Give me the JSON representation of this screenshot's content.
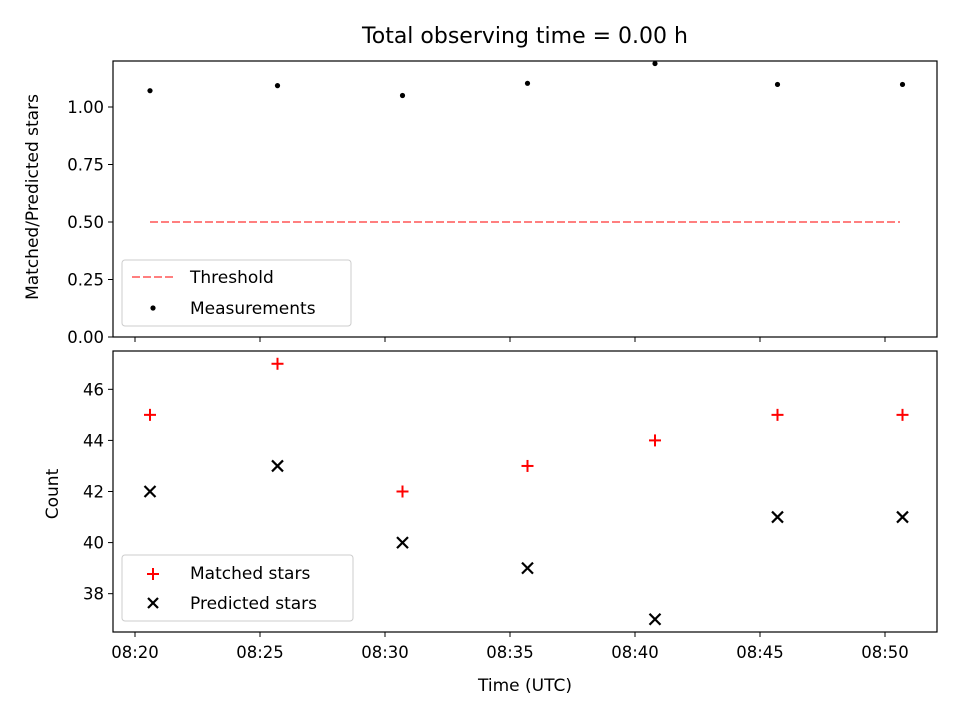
{
  "chart_data": [
    {
      "type": "scatter",
      "title": "Total observing time = 0.00 h",
      "ylabel": "Matched/Predicted stars",
      "xlabel": "",
      "x_ticks": [
        "08:20",
        "08:25",
        "08:30",
        "08:35",
        "08:40",
        "08:45",
        "08:50"
      ],
      "x_unit": "minutes since 08:20 UTC",
      "ylim": [
        0.0,
        1.2
      ],
      "y_ticks": [
        "0.00",
        "0.25",
        "0.50",
        "0.75",
        "1.00"
      ],
      "grid": false,
      "legend_position": "lower-left",
      "series": [
        {
          "name": "Threshold",
          "style": "dashed-line",
          "color": "#ff7f7f",
          "x": [
            0.6,
            30.6
          ],
          "y": [
            0.5,
            0.5
          ]
        },
        {
          "name": "Measurements",
          "style": "dot",
          "color": "#000000",
          "x": [
            0.6,
            5.7,
            10.7,
            15.7,
            20.8,
            25.7,
            30.7
          ],
          "y": [
            1.071,
            1.093,
            1.05,
            1.103,
            1.189,
            1.098,
            1.098
          ]
        }
      ]
    },
    {
      "type": "scatter",
      "title": "",
      "ylabel": "Count",
      "xlabel": "Time (UTC)",
      "x_ticks": [
        "08:20",
        "08:25",
        "08:30",
        "08:35",
        "08:40",
        "08:45",
        "08:50"
      ],
      "ylim": [
        36.5,
        47.5
      ],
      "y_ticks": [
        "38",
        "40",
        "42",
        "44",
        "46"
      ],
      "grid": false,
      "legend_position": "lower-left",
      "series": [
        {
          "name": "Matched stars",
          "style": "plus",
          "color": "#ff0000",
          "x": [
            0.6,
            5.7,
            10.7,
            15.7,
            20.8,
            25.7,
            30.7
          ],
          "y": [
            45,
            47,
            42,
            43,
            44,
            45,
            45
          ]
        },
        {
          "name": "Predicted stars",
          "style": "x",
          "color": "#000000",
          "x": [
            0.6,
            5.7,
            10.7,
            15.7,
            20.8,
            25.7,
            30.7
          ],
          "y": [
            42,
            43,
            40,
            39,
            37,
            41,
            41
          ]
        }
      ]
    }
  ]
}
